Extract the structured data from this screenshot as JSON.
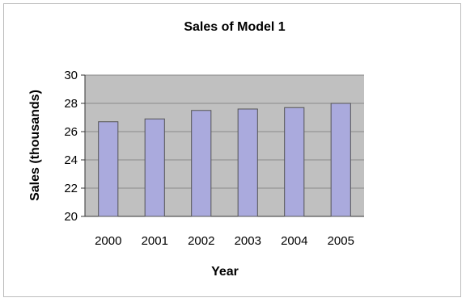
{
  "chart_data": {
    "type": "bar",
    "title": "Sales of Model 1",
    "xlabel": "Year",
    "ylabel": "Sales (thousands)",
    "categories": [
      "2000",
      "2001",
      "2002",
      "2003",
      "2004",
      "2005"
    ],
    "values": [
      26.7,
      26.9,
      27.5,
      27.6,
      27.7,
      28.0
    ],
    "ylim": [
      20,
      30
    ],
    "yticks": [
      20,
      22,
      24,
      26,
      28,
      30
    ],
    "grid": true,
    "legend": "none",
    "colors": {
      "bar": "#aaaadd",
      "bar_edge": "#555555",
      "plot_bg": "#c0c0c0",
      "grid": "#8a8a8a"
    }
  }
}
